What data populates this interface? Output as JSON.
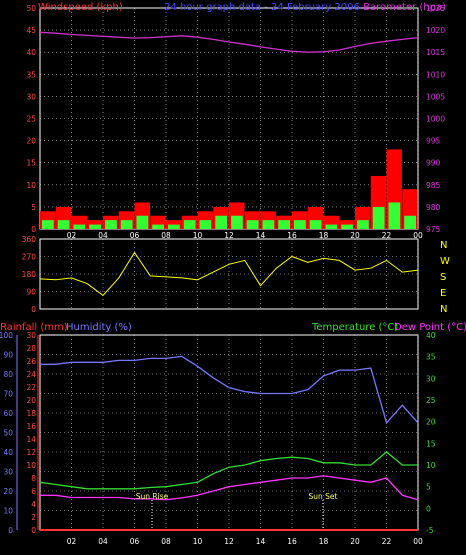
{
  "header": {
    "left": "Windspeed (kph)",
    "center": "24 hour graph data - 24 February 2006",
    "right": "Barometer (hpa)"
  },
  "colors": {
    "windspeed": "#ff0000",
    "gust_avg": "#33ff33",
    "gust_low": "#ffffff",
    "barometer": "#cc33cc",
    "direction": "#ffff00",
    "rainfall": "#ff3333",
    "humidity": "#7777ff",
    "temperature": "#33dd33",
    "dewpoint": "#ff33ff",
    "grid": "#cccccc",
    "tick_text": "#ff4444"
  },
  "x_ticks": [
    "02",
    "04",
    "06",
    "08",
    "10",
    "12",
    "14",
    "16",
    "18",
    "20",
    "22",
    "00"
  ],
  "chart_data": [
    {
      "type": "line",
      "name": "wind-barometer",
      "title": "24 hour graph data - 24 February 2006",
      "ylabel_left": "Windspeed (kph)",
      "ylabel_right": "Barometer (hpa)",
      "ylim_left": [
        0,
        50
      ],
      "ylim_right": [
        975,
        1025
      ],
      "yticks_left": [
        "0",
        "5",
        "10",
        "15",
        "20",
        "25",
        "30",
        "35",
        "40",
        "45",
        "50"
      ],
      "yticks_right": [
        "975",
        "980",
        "985",
        "990",
        "995",
        "1000",
        "1005",
        "1010",
        "1015",
        "1020",
        "1025"
      ],
      "x_hours": [
        0,
        1,
        2,
        3,
        4,
        5,
        6,
        7,
        8,
        9,
        10,
        11,
        12,
        13,
        14,
        15,
        16,
        17,
        18,
        19,
        20,
        21,
        22,
        23,
        24
      ],
      "series": [
        {
          "name": "Barometer",
          "axis": "right",
          "values": [
            1019.5,
            1019.3,
            1019.0,
            1018.8,
            1018.6,
            1018.4,
            1018.2,
            1018.3,
            1018.5,
            1018.7,
            1018.4,
            1017.9,
            1017.3,
            1016.8,
            1016.2,
            1015.7,
            1015.2,
            1015.0,
            1015.1,
            1015.5,
            1016.3,
            1017.0,
            1017.5,
            1017.9,
            1018.3
          ]
        },
        {
          "name": "Windspeed",
          "axis": "left",
          "values": [
            4,
            5,
            3,
            2,
            3,
            4,
            6,
            3,
            2,
            3,
            4,
            5,
            6,
            4,
            4,
            3,
            4,
            5,
            3,
            2,
            5,
            12,
            18,
            9,
            7
          ]
        },
        {
          "name": "Gust average",
          "axis": "left",
          "values": [
            2,
            2,
            1,
            1,
            2,
            2,
            3,
            1,
            1,
            2,
            2,
            3,
            3,
            2,
            2,
            2,
            2,
            2,
            1,
            1,
            2,
            5,
            6,
            3,
            2
          ]
        }
      ]
    },
    {
      "type": "line",
      "name": "wind-direction",
      "ylim": [
        0,
        360
      ],
      "yticks": [
        "0",
        "90",
        "180",
        "270",
        "360"
      ],
      "compass": [
        "N",
        "W",
        "S",
        "E",
        "N"
      ],
      "x_hours": [
        0,
        1,
        2,
        3,
        4,
        5,
        6,
        7,
        8,
        9,
        10,
        11,
        12,
        13,
        14,
        15,
        16,
        17,
        18,
        19,
        20,
        21,
        22,
        23,
        24
      ],
      "values": [
        155,
        150,
        160,
        130,
        70,
        160,
        290,
        170,
        165,
        160,
        150,
        190,
        230,
        250,
        120,
        210,
        270,
        240,
        260,
        250,
        200,
        210,
        250,
        190,
        200
      ]
    },
    {
      "type": "line",
      "name": "rain-humidity-temp",
      "ylabel_left_1": "Rainfall (mm)",
      "ylabel_left_2": "Humidity (%)",
      "ylabel_right_1": "Temperature (°C)",
      "ylabel_right_2": "Dew Point (°C)",
      "ylim_humidity": [
        0,
        100
      ],
      "ylim_rain": [
        0,
        30
      ],
      "ylim_temp": [
        -5,
        40
      ],
      "yticks_humidity": [
        "0",
        "10",
        "20",
        "30",
        "40",
        "50",
        "60",
        "70",
        "80",
        "90",
        "100"
      ],
      "yticks_rain": [
        "0",
        "2",
        "4",
        "6",
        "8",
        "10",
        "12",
        "14",
        "16",
        "18",
        "20",
        "22",
        "24",
        "26",
        "28",
        "30"
      ],
      "yticks_temp": [
        "-5",
        "0",
        "5",
        "10",
        "15",
        "20",
        "25",
        "30",
        "35",
        "40"
      ],
      "annotations": [
        "Sun Rise",
        "Sun Set"
      ],
      "x_hours": [
        0,
        1,
        2,
        3,
        4,
        5,
        6,
        7,
        8,
        9,
        10,
        11,
        12,
        13,
        14,
        15,
        16,
        17,
        18,
        19,
        20,
        21,
        22,
        23,
        24
      ],
      "series": [
        {
          "name": "Humidity",
          "axis": "humidity",
          "values": [
            85,
            85,
            86,
            86,
            86,
            87,
            87,
            88,
            88,
            89,
            84,
            78,
            73,
            71,
            70,
            70,
            70,
            72,
            79,
            82,
            82,
            83,
            55,
            64,
            55
          ]
        },
        {
          "name": "Temperature",
          "axis": "temp",
          "values": [
            6,
            5.5,
            5,
            4.5,
            4.5,
            4.5,
            4.5,
            4.8,
            5,
            5.5,
            6,
            8,
            9.5,
            10,
            11,
            11.5,
            11.8,
            11.5,
            10.5,
            10.5,
            10,
            10,
            13,
            10,
            10
          ]
        },
        {
          "name": "Dew Point",
          "axis": "temp",
          "values": [
            3,
            3,
            2.5,
            2.5,
            2.5,
            2.5,
            2.2,
            2.2,
            2,
            2.4,
            3,
            4,
            5,
            5.5,
            6,
            6.5,
            7,
            7,
            7.5,
            7,
            6.5,
            6,
            7,
            3,
            2
          ]
        },
        {
          "name": "Rainfall",
          "axis": "rain",
          "values": [
            0,
            0,
            0,
            0,
            0,
            0,
            0,
            0,
            0,
            0,
            0,
            0,
            0,
            0,
            0,
            0,
            0,
            0,
            0,
            0,
            0,
            0,
            0,
            0,
            0
          ]
        }
      ]
    }
  ]
}
